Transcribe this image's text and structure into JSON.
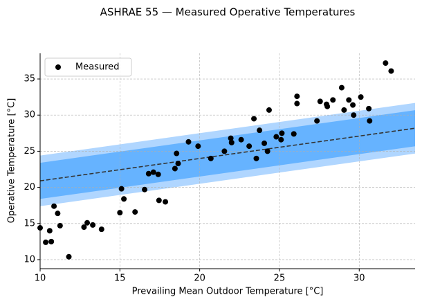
{
  "chart_data": {
    "type": "scatter",
    "title": "ASHRAE 55 — Measured Operative Temperatures",
    "xlabel": "Prevailing Mean Outdoor Temperature [°C]",
    "ylabel": "Operative Temperature [°C]",
    "xlim": [
      10,
      33.5
    ],
    "ylim": [
      8.75,
      38.55
    ],
    "xticks": [
      10,
      15,
      20,
      25,
      30
    ],
    "yticks": [
      10,
      15,
      20,
      25,
      30,
      35
    ],
    "grid": true,
    "legend": "upper left",
    "bands": [
      {
        "x": [
          10,
          33.5
        ],
        "lower": [
          17.4,
          24.685
        ],
        "upper": [
          24.4,
          31.685
        ],
        "color": "#b0d6ff"
      },
      {
        "x": [
          10,
          33.5
        ],
        "lower": [
          18.4,
          25.685
        ],
        "upper": [
          23.4,
          30.685
        ],
        "color": "#66b3ff"
      }
    ],
    "line": {
      "x": [
        10,
        33.5
      ],
      "values": [
        20.9,
        28.185
      ],
      "color": "#333333"
    },
    "series": [
      {
        "name": "Measured",
        "color": "#000000",
        "x": [
          10.0,
          10.35,
          10.6,
          10.7,
          10.87,
          11.1,
          11.25,
          11.8,
          12.75,
          12.95,
          13.3,
          13.85,
          15.0,
          15.1,
          15.25,
          15.95,
          16.55,
          16.8,
          17.1,
          17.4,
          17.45,
          17.85,
          18.45,
          18.55,
          18.65,
          19.3,
          19.9,
          20.7,
          21.55,
          21.95,
          22.0,
          22.6,
          23.1,
          23.4,
          23.55,
          23.75,
          24.05,
          24.25,
          24.35,
          24.8,
          25.1,
          25.15,
          25.9,
          26.1,
          26.1,
          27.35,
          27.55,
          27.95,
          28.0,
          28.35,
          28.9,
          29.05,
          29.35,
          29.6,
          29.65,
          30.1,
          30.6,
          30.65,
          31.65,
          32.0
        ],
        "values": [
          14.4,
          12.4,
          14.0,
          12.5,
          17.4,
          16.4,
          14.7,
          10.4,
          14.5,
          15.1,
          14.8,
          14.2,
          16.5,
          19.8,
          18.4,
          16.6,
          19.7,
          21.9,
          22.1,
          21.8,
          18.2,
          18.0,
          22.6,
          24.7,
          23.3,
          26.3,
          25.7,
          24.0,
          25.0,
          26.8,
          26.2,
          26.6,
          25.7,
          29.5,
          24.0,
          27.9,
          26.1,
          25.0,
          30.7,
          27.0,
          26.6,
          27.5,
          27.4,
          32.6,
          31.6,
          29.2,
          31.9,
          31.5,
          31.2,
          32.1,
          33.8,
          30.7,
          32.1,
          31.4,
          30.0,
          32.5,
          30.9,
          29.2,
          37.2,
          36.1
        ]
      }
    ]
  }
}
